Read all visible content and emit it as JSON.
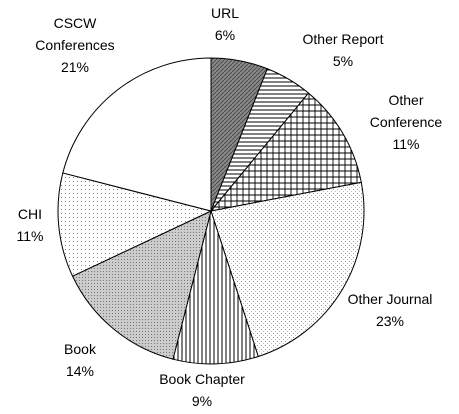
{
  "chart_data": {
    "type": "pie",
    "categories": [
      "URL",
      "Other Report",
      "Other Conference",
      "Other Journal",
      "Book Chapter",
      "Book",
      "CHI",
      "CSCW Conferences"
    ],
    "values": [
      6,
      5,
      11,
      23,
      9,
      14,
      11,
      21
    ],
    "value_labels": [
      "6%",
      "5%",
      "11%",
      "23%",
      "9%",
      "14%",
      "11%",
      "21%"
    ]
  }
}
